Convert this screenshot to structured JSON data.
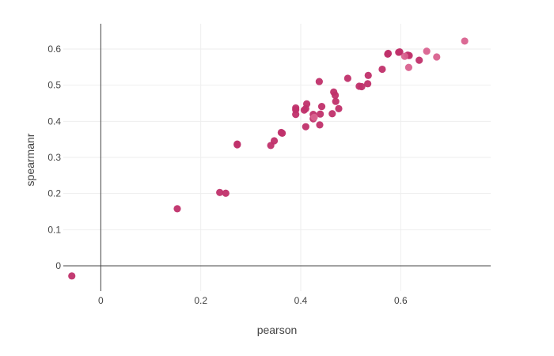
{
  "chart_data": {
    "type": "scatter",
    "xlabel": "pearson",
    "ylabel": "spearmanr",
    "xlim": [
      -0.075,
      0.78
    ],
    "ylim": [
      -0.07,
      0.67
    ],
    "x_ticks": [
      0,
      0.2,
      0.4,
      0.6
    ],
    "x_tick_labels": [
      "0",
      "0.2",
      "0.4",
      "0.6"
    ],
    "y_ticks": [
      0,
      0.1,
      0.2,
      0.3,
      0.4,
      0.5,
      0.6
    ],
    "y_tick_labels": [
      "0",
      "0.1",
      "0.2",
      "0.3",
      "0.4",
      "0.5",
      "0.6"
    ],
    "grid": true,
    "colors": {
      "marker": "#c0306a",
      "marker_light": "#d9628f",
      "grid": "#eeeeee",
      "zeroline": "#444444",
      "text": "#444444"
    },
    "series": [
      {
        "points": [
          [
            -0.058,
            -0.028
          ],
          [
            0.153,
            0.158
          ],
          [
            0.238,
            0.203
          ],
          [
            0.25,
            0.201
          ],
          [
            0.273,
            0.337
          ],
          [
            0.273,
            0.335
          ],
          [
            0.34,
            0.333
          ],
          [
            0.347,
            0.346
          ],
          [
            0.361,
            0.369
          ],
          [
            0.363,
            0.367
          ],
          [
            0.39,
            0.437
          ],
          [
            0.39,
            0.432
          ],
          [
            0.39,
            0.419
          ],
          [
            0.407,
            0.431
          ],
          [
            0.41,
            0.435
          ],
          [
            0.412,
            0.448
          ],
          [
            0.41,
            0.385
          ],
          [
            0.425,
            0.419
          ],
          [
            0.425,
            0.407
          ],
          [
            0.437,
            0.51
          ],
          [
            0.438,
            0.39
          ],
          [
            0.439,
            0.42
          ],
          [
            0.442,
            0.441
          ],
          [
            0.463,
            0.421
          ],
          [
            0.466,
            0.481
          ],
          [
            0.469,
            0.472
          ],
          [
            0.47,
            0.455
          ],
          [
            0.476,
            0.435
          ],
          [
            0.494,
            0.519
          ],
          [
            0.517,
            0.497
          ],
          [
            0.522,
            0.496
          ],
          [
            0.534,
            0.504
          ],
          [
            0.535,
            0.527
          ],
          [
            0.563,
            0.544
          ],
          [
            0.574,
            0.586
          ],
          [
            0.575,
            0.588
          ],
          [
            0.596,
            0.591
          ],
          [
            0.598,
            0.592
          ],
          [
            0.614,
            0.583
          ],
          [
            0.617,
            0.582
          ],
          [
            0.637,
            0.569
          ]
        ]
      },
      {
        "light": true,
        "points": [
          [
            0.427,
            0.411
          ],
          [
            0.608,
            0.58
          ],
          [
            0.616,
            0.549
          ],
          [
            0.652,
            0.594
          ],
          [
            0.672,
            0.578
          ],
          [
            0.728,
            0.622
          ]
        ]
      }
    ]
  }
}
